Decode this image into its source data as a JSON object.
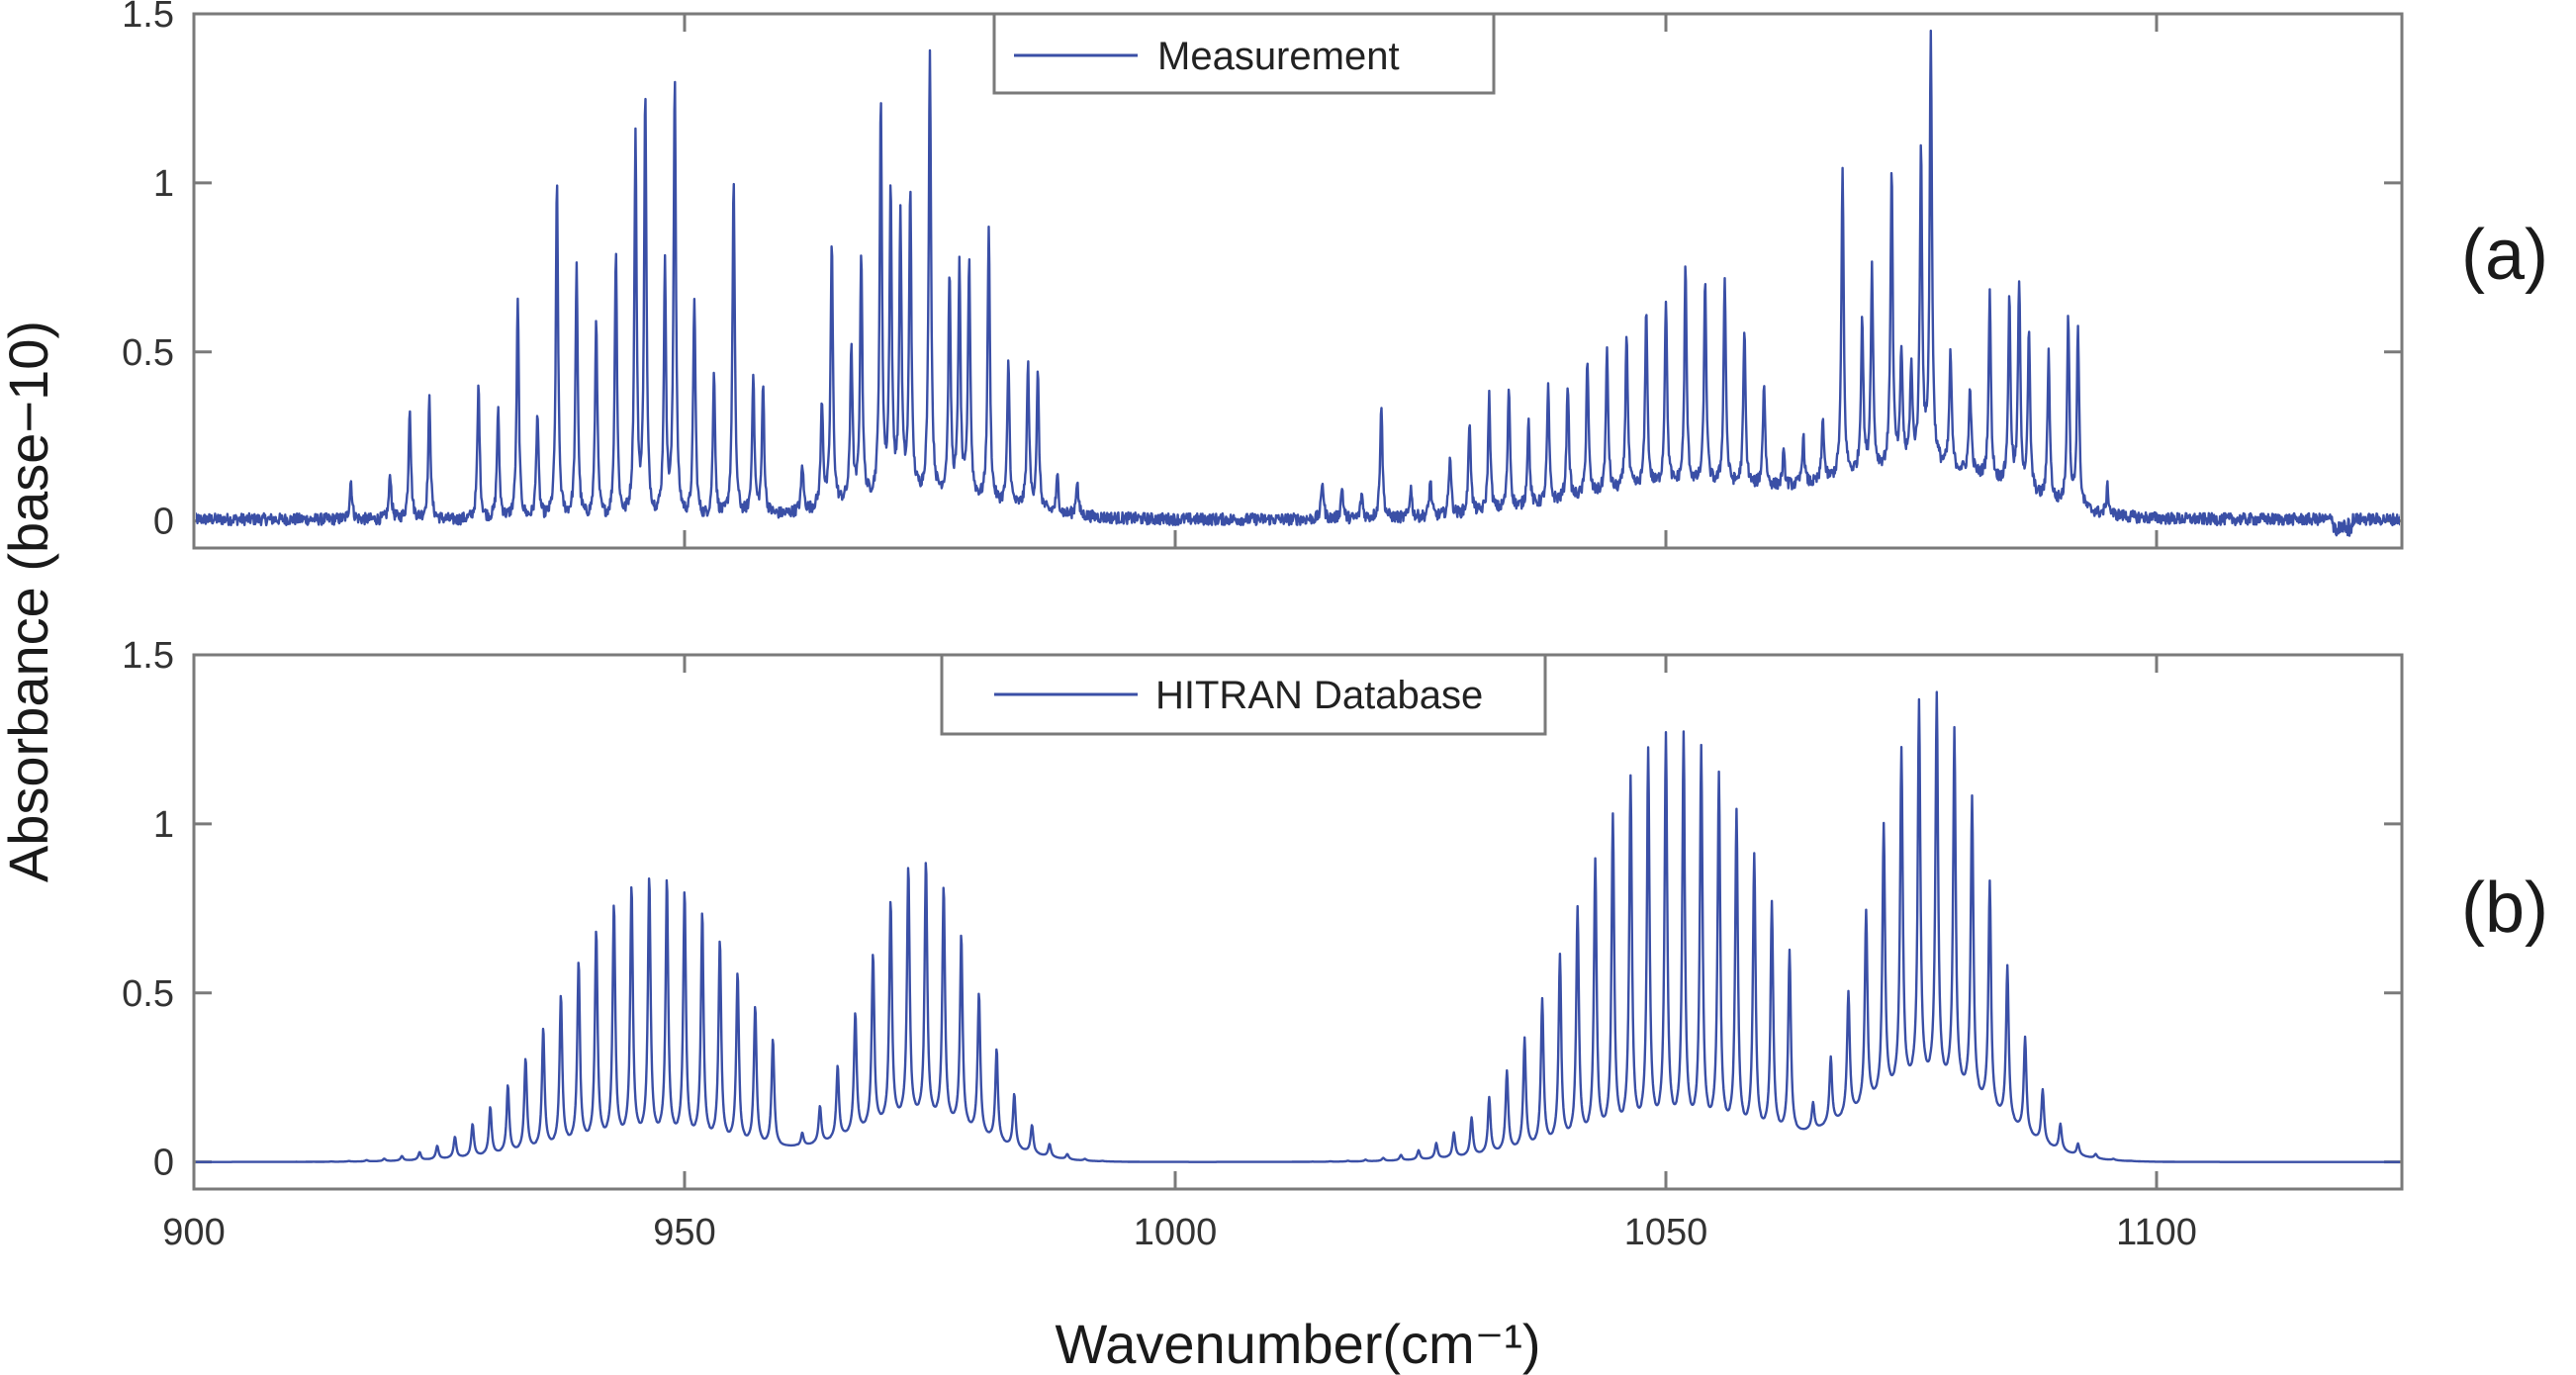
{
  "chart_data": {
    "type": "line",
    "xlabel": "Wavenumber(cm⁻¹)",
    "ylabel": "Absorbance (base−10)",
    "xlim": [
      900,
      1125
    ],
    "x_ticks": [
      900,
      950,
      1000,
      1050,
      1100
    ],
    "grid": false,
    "panels": [
      {
        "tag": "(a)",
        "legend": "Measurement",
        "legend_position": "top-center",
        "ylim": [
          -0.08,
          1.5
        ],
        "y_ticks": [
          0,
          0.5,
          1,
          1.5
        ],
        "color": "#3a4fa6",
        "series": {
          "name": "Measurement",
          "band_centers": [
            949,
            974,
            1052,
            1077
          ],
          "baseline_approx": [
            0.0,
            0.07,
            0.1,
            0.15
          ],
          "peaks": [
            [
              916,
              0.12
            ],
            [
              920,
              0.14
            ],
            [
              922,
              0.34
            ],
            [
              924,
              0.36
            ],
            [
              929,
              0.4
            ],
            [
              931,
              0.33
            ],
            [
              933,
              0.65
            ],
            [
              935,
              0.32
            ],
            [
              937,
              1.0
            ],
            [
              939,
              0.75
            ],
            [
              941,
              0.6
            ],
            [
              943,
              0.81
            ],
            [
              945,
              1.13
            ],
            [
              946,
              1.26
            ],
            [
              948,
              0.74
            ],
            [
              949,
              1.31
            ],
            [
              951,
              0.66
            ],
            [
              953,
              0.44
            ],
            [
              955,
              1.01
            ],
            [
              957,
              0.43
            ],
            [
              958,
              0.4
            ],
            [
              962,
              0.17
            ],
            [
              964,
              0.35
            ],
            [
              965,
              0.82
            ],
            [
              967,
              0.52
            ],
            [
              968,
              0.8
            ],
            [
              970,
              1.23
            ],
            [
              971,
              0.97
            ],
            [
              972,
              0.89
            ],
            [
              973,
              0.98
            ],
            [
              975,
              1.4
            ],
            [
              977,
              0.73
            ],
            [
              978,
              0.74
            ],
            [
              979,
              0.77
            ],
            [
              981,
              0.87
            ],
            [
              983,
              0.47
            ],
            [
              985,
              0.46
            ],
            [
              986,
              0.43
            ],
            [
              988,
              0.13
            ],
            [
              990,
              0.12
            ],
            [
              1015,
              0.12
            ],
            [
              1017,
              0.1
            ],
            [
              1019,
              0.08
            ],
            [
              1021,
              0.35
            ],
            [
              1024,
              0.1
            ],
            [
              1026,
              0.12
            ],
            [
              1028,
              0.2
            ],
            [
              1030,
              0.3
            ],
            [
              1032,
              0.37
            ],
            [
              1034,
              0.4
            ],
            [
              1036,
              0.3
            ],
            [
              1038,
              0.39
            ],
            [
              1040,
              0.41
            ],
            [
              1042,
              0.48
            ],
            [
              1044,
              0.5
            ],
            [
              1046,
              0.56
            ],
            [
              1048,
              0.63
            ],
            [
              1050,
              0.66
            ],
            [
              1052,
              0.75
            ],
            [
              1054,
              0.71
            ],
            [
              1056,
              0.72
            ],
            [
              1058,
              0.56
            ],
            [
              1060,
              0.41
            ],
            [
              1062,
              0.2
            ],
            [
              1064,
              0.25
            ],
            [
              1066,
              0.3
            ],
            [
              1068,
              1.04
            ],
            [
              1070,
              0.6
            ],
            [
              1071,
              0.75
            ],
            [
              1073,
              1.04
            ],
            [
              1074,
              0.5
            ],
            [
              1075,
              0.45
            ],
            [
              1076,
              1.09
            ],
            [
              1077,
              1.43
            ],
            [
              1079,
              0.5
            ],
            [
              1081,
              0.4
            ],
            [
              1083,
              0.67
            ],
            [
              1085,
              0.65
            ],
            [
              1086,
              0.7
            ],
            [
              1087,
              0.55
            ],
            [
              1089,
              0.5
            ],
            [
              1091,
              0.61
            ],
            [
              1092,
              0.57
            ],
            [
              1095,
              0.1
            ]
          ]
        }
      },
      {
        "tag": "(b)",
        "legend": "HITRAN Database",
        "legend_position": "top-center",
        "ylim": [
          -0.08,
          1.5
        ],
        "y_ticks": [
          0,
          0.5,
          1,
          1.5
        ],
        "color": "#3a4fa6",
        "series": {
          "name": "HITRAN Database",
          "bands": [
            {
              "center": 947,
              "peak_max": 0.84,
              "baseline_max": 0.07,
              "range": [
                905,
                960
              ]
            },
            {
              "center": 974,
              "peak_max": 0.89,
              "baseline_max": 0.12,
              "range": [
                962,
                995
              ]
            },
            {
              "center": 1051,
              "peak_max": 1.26,
              "baseline_max": 0.1,
              "range": [
                1005,
                1063
              ]
            },
            {
              "center": 1077,
              "peak_max": 1.38,
              "baseline_max": 0.22,
              "range": [
                1065,
                1100
              ]
            }
          ],
          "line_spacing": 1.8
        }
      }
    ]
  }
}
